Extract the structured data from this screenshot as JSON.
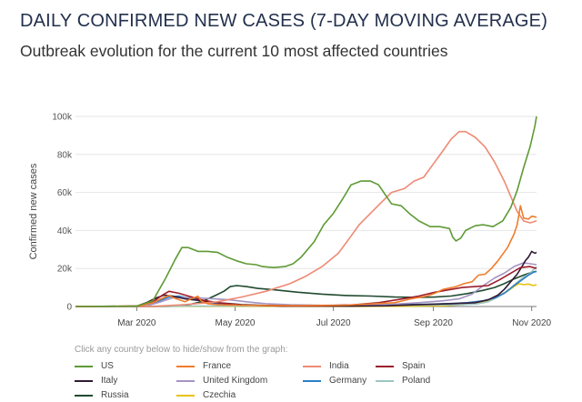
{
  "header": {
    "title": "DAILY CONFIRMED NEW CASES (7-DAY MOVING AVERAGE)",
    "subtitle": "Outbreak evolution for the current 10 most affected countries"
  },
  "legend_hint": "Click any country below to hide/show from the graph:",
  "chart_data": {
    "type": "line",
    "title": "DAILY CONFIRMED NEW CASES (7-DAY MOVING AVERAGE)",
    "subtitle": "Outbreak evolution for the current 10 most affected countries",
    "xlabel": "",
    "ylabel": "Confirmed new cases",
    "x_unit": "days since 2020-01-01",
    "xlim": [
      22,
      308
    ],
    "ylim": [
      0,
      100000
    ],
    "yticks": [
      0,
      20000,
      40000,
      60000,
      80000,
      100000
    ],
    "ytick_labels": [
      "0",
      "20k",
      "40k",
      "60k",
      "80k",
      "100k"
    ],
    "xticks": [
      60,
      121,
      182,
      244,
      305
    ],
    "xtick_labels": [
      "Mar 2020",
      "May 2020",
      "Jul 2020",
      "Sep 2020",
      "Nov 2020"
    ],
    "grid": "horizontal",
    "series": [
      {
        "name": "US",
        "color": "#5e9a35",
        "points": [
          [
            22,
            0
          ],
          [
            60,
            200
          ],
          [
            70,
            3000
          ],
          [
            78,
            15000
          ],
          [
            84,
            25000
          ],
          [
            88,
            31000
          ],
          [
            92,
            31000
          ],
          [
            98,
            29000
          ],
          [
            104,
            29000
          ],
          [
            110,
            28500
          ],
          [
            116,
            26000
          ],
          [
            122,
            24000
          ],
          [
            128,
            22500
          ],
          [
            134,
            22000
          ],
          [
            138,
            21000
          ],
          [
            145,
            20500
          ],
          [
            152,
            21000
          ],
          [
            157,
            22500
          ],
          [
            162,
            26000
          ],
          [
            170,
            34000
          ],
          [
            176,
            43000
          ],
          [
            182,
            49000
          ],
          [
            188,
            57000
          ],
          [
            193,
            64000
          ],
          [
            199,
            66000
          ],
          [
            205,
            66000
          ],
          [
            210,
            64000
          ],
          [
            214,
            59000
          ],
          [
            218,
            54000
          ],
          [
            224,
            53000
          ],
          [
            229,
            49000
          ],
          [
            235,
            45000
          ],
          [
            242,
            42000
          ],
          [
            248,
            42000
          ],
          [
            254,
            41000
          ],
          [
            256,
            36500
          ],
          [
            258,
            34500
          ],
          [
            261,
            36000
          ],
          [
            264,
            40000
          ],
          [
            270,
            42500
          ],
          [
            275,
            43000
          ],
          [
            281,
            42000
          ],
          [
            287,
            45000
          ],
          [
            292,
            52000
          ],
          [
            296,
            61000
          ],
          [
            300,
            73000
          ],
          [
            304,
            84000
          ],
          [
            307,
            95000
          ],
          [
            308,
            100000
          ]
        ]
      },
      {
        "name": "France",
        "color": "#f07c2a",
        "points": [
          [
            22,
            0
          ],
          [
            62,
            300
          ],
          [
            70,
            2000
          ],
          [
            75,
            4000
          ],
          [
            80,
            5800
          ],
          [
            84,
            4200
          ],
          [
            90,
            2500
          ],
          [
            94,
            4200
          ],
          [
            98,
            5400
          ],
          [
            100,
            2800
          ],
          [
            104,
            1500
          ],
          [
            110,
            900
          ],
          [
            130,
            600
          ],
          [
            160,
            500
          ],
          [
            190,
            700
          ],
          [
            220,
            2000
          ],
          [
            230,
            4000
          ],
          [
            240,
            5500
          ],
          [
            245,
            7000
          ],
          [
            250,
            9000
          ],
          [
            258,
            10500
          ],
          [
            263,
            12000
          ],
          [
            268,
            13000
          ],
          [
            272,
            16500
          ],
          [
            276,
            17000
          ],
          [
            280,
            20000
          ],
          [
            284,
            24000
          ],
          [
            290,
            31000
          ],
          [
            294,
            38000
          ],
          [
            296,
            43000
          ],
          [
            298,
            53000
          ],
          [
            300,
            46500
          ],
          [
            303,
            46000
          ],
          [
            305,
            47500
          ],
          [
            308,
            47000
          ]
        ]
      },
      {
        "name": "India",
        "color": "#ee8a74",
        "points": [
          [
            22,
            0
          ],
          [
            70,
            100
          ],
          [
            90,
            1000
          ],
          [
            110,
            2500
          ],
          [
            125,
            5000
          ],
          [
            140,
            8000
          ],
          [
            155,
            12000
          ],
          [
            165,
            16000
          ],
          [
            175,
            21000
          ],
          [
            185,
            28000
          ],
          [
            192,
            36000
          ],
          [
            198,
            43000
          ],
          [
            205,
            49000
          ],
          [
            212,
            55000
          ],
          [
            218,
            60000
          ],
          [
            226,
            62000
          ],
          [
            232,
            66000
          ],
          [
            238,
            68000
          ],
          [
            244,
            75000
          ],
          [
            250,
            82000
          ],
          [
            255,
            88000
          ],
          [
            260,
            92000
          ],
          [
            264,
            92000
          ],
          [
            270,
            89000
          ],
          [
            276,
            84000
          ],
          [
            282,
            76000
          ],
          [
            288,
            66000
          ],
          [
            292,
            58000
          ],
          [
            296,
            50000
          ],
          [
            300,
            45000
          ],
          [
            304,
            44000
          ],
          [
            308,
            45000
          ]
        ]
      },
      {
        "name": "Spain",
        "color": "#9c1d2c",
        "points": [
          [
            22,
            0
          ],
          [
            62,
            200
          ],
          [
            70,
            2500
          ],
          [
            76,
            6000
          ],
          [
            80,
            8000
          ],
          [
            86,
            7000
          ],
          [
            92,
            5500
          ],
          [
            100,
            3500
          ],
          [
            110,
            2000
          ],
          [
            125,
            700
          ],
          [
            150,
            300
          ],
          [
            175,
            400
          ],
          [
            195,
            900
          ],
          [
            210,
            2000
          ],
          [
            225,
            4000
          ],
          [
            235,
            5500
          ],
          [
            245,
            7500
          ],
          [
            255,
            9000
          ],
          [
            262,
            10000
          ],
          [
            270,
            10500
          ],
          [
            278,
            11000
          ],
          [
            285,
            14000
          ],
          [
            292,
            17500
          ],
          [
            298,
            20500
          ],
          [
            304,
            21000
          ],
          [
            308,
            20000
          ]
        ]
      },
      {
        "name": "Italy",
        "color": "#311a33",
        "points": [
          [
            22,
            0
          ],
          [
            60,
            200
          ],
          [
            66,
            2000
          ],
          [
            72,
            4500
          ],
          [
            77,
            6000
          ],
          [
            82,
            5500
          ],
          [
            90,
            4000
          ],
          [
            100,
            3000
          ],
          [
            110,
            2000
          ],
          [
            125,
            1000
          ],
          [
            150,
            300
          ],
          [
            190,
            200
          ],
          [
            215,
            400
          ],
          [
            235,
            1000
          ],
          [
            255,
            1500
          ],
          [
            270,
            2000
          ],
          [
            278,
            3500
          ],
          [
            284,
            6000
          ],
          [
            288,
            9000
          ],
          [
            292,
            13000
          ],
          [
            296,
            17000
          ],
          [
            299,
            21000
          ],
          [
            301,
            24000
          ],
          [
            303,
            26000
          ],
          [
            305,
            29000
          ],
          [
            307,
            28000
          ],
          [
            308,
            28500
          ]
        ]
      },
      {
        "name": "United Kingdom",
        "color": "#a494c2",
        "points": [
          [
            22,
            0
          ],
          [
            65,
            100
          ],
          [
            75,
            2500
          ],
          [
            82,
            4500
          ],
          [
            90,
            4800
          ],
          [
            98,
            4500
          ],
          [
            108,
            4000
          ],
          [
            118,
            3500
          ],
          [
            128,
            2500
          ],
          [
            140,
            1500
          ],
          [
            155,
            900
          ],
          [
            175,
            600
          ],
          [
            195,
            700
          ],
          [
            215,
            1000
          ],
          [
            235,
            2000
          ],
          [
            250,
            3000
          ],
          [
            260,
            4000
          ],
          [
            268,
            6500
          ],
          [
            275,
            11000
          ],
          [
            282,
            15000
          ],
          [
            288,
            17500
          ],
          [
            294,
            21000
          ],
          [
            300,
            23000
          ],
          [
            304,
            22500
          ],
          [
            308,
            22000
          ]
        ]
      },
      {
        "name": "Germany",
        "color": "#2b7fc7",
        "points": [
          [
            22,
            0
          ],
          [
            66,
            100
          ],
          [
            74,
            3000
          ],
          [
            80,
            5000
          ],
          [
            86,
            5500
          ],
          [
            92,
            4500
          ],
          [
            100,
            3000
          ],
          [
            110,
            1500
          ],
          [
            125,
            700
          ],
          [
            150,
            400
          ],
          [
            175,
            500
          ],
          [
            200,
            700
          ],
          [
            220,
            1000
          ],
          [
            240,
            1200
          ],
          [
            255,
            1600
          ],
          [
            265,
            2000
          ],
          [
            275,
            3000
          ],
          [
            282,
            4500
          ],
          [
            288,
            7000
          ],
          [
            294,
            11000
          ],
          [
            299,
            14000
          ],
          [
            303,
            16500
          ],
          [
            306,
            18000
          ],
          [
            308,
            18500
          ]
        ]
      },
      {
        "name": "Poland",
        "color": "#9bc6c2",
        "points": [
          [
            22,
            0
          ],
          [
            90,
            200
          ],
          [
            150,
            300
          ],
          [
            190,
            400
          ],
          [
            215,
            600
          ],
          [
            240,
            700
          ],
          [
            260,
            900
          ],
          [
            272,
            1500
          ],
          [
            278,
            2500
          ],
          [
            284,
            5000
          ],
          [
            290,
            8000
          ],
          [
            295,
            12000
          ],
          [
            300,
            15500
          ],
          [
            304,
            17500
          ],
          [
            308,
            21000
          ]
        ]
      },
      {
        "name": "Russia",
        "color": "#204a30",
        "points": [
          [
            22,
            0
          ],
          [
            80,
            100
          ],
          [
            90,
            500
          ],
          [
            100,
            2500
          ],
          [
            108,
            5500
          ],
          [
            114,
            8000
          ],
          [
            118,
            10500
          ],
          [
            122,
            11000
          ],
          [
            128,
            10500
          ],
          [
            135,
            9500
          ],
          [
            145,
            8800
          ],
          [
            160,
            7500
          ],
          [
            175,
            6500
          ],
          [
            190,
            5800
          ],
          [
            205,
            5500
          ],
          [
            220,
            5000
          ],
          [
            235,
            4800
          ],
          [
            245,
            5000
          ],
          [
            255,
            5500
          ],
          [
            265,
            6800
          ],
          [
            275,
            8500
          ],
          [
            282,
            10000
          ],
          [
            288,
            12000
          ],
          [
            294,
            14500
          ],
          [
            300,
            16500
          ],
          [
            305,
            18000
          ],
          [
            308,
            18500
          ]
        ]
      },
      {
        "name": "Czechia",
        "color": "#e7c30e",
        "points": [
          [
            22,
            0
          ],
          [
            80,
            100
          ],
          [
            150,
            100
          ],
          [
            200,
            100
          ],
          [
            230,
            200
          ],
          [
            250,
            400
          ],
          [
            262,
            1000
          ],
          [
            270,
            2000
          ],
          [
            278,
            3000
          ],
          [
            284,
            5500
          ],
          [
            290,
            8000
          ],
          [
            294,
            10500
          ],
          [
            297,
            12000
          ],
          [
            300,
            11500
          ],
          [
            303,
            11800
          ],
          [
            306,
            11000
          ],
          [
            308,
            11500
          ]
        ]
      }
    ]
  }
}
